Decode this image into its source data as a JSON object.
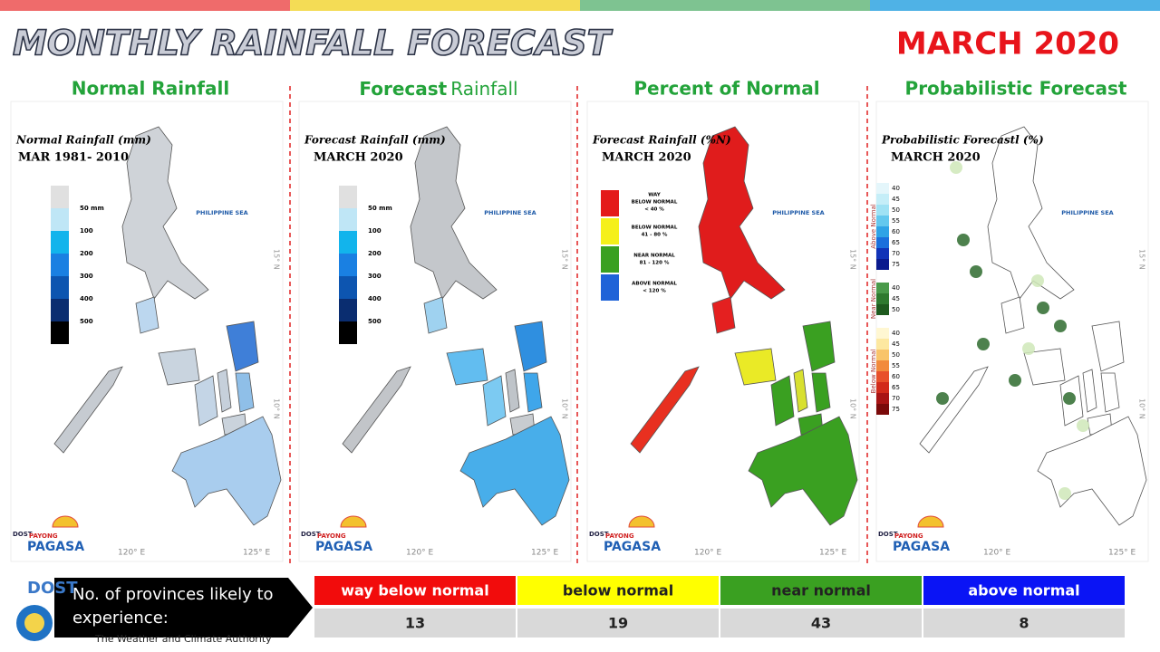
{
  "header": {
    "title": "MONTHLY RAINFALL FORECAST",
    "period": "MARCH 2020"
  },
  "panels": [
    {
      "heading": "Normal Rainfall",
      "map_title": "Normal Rainfall (mm)",
      "map_subtitle": "MAR 1981- 2010",
      "legend": [
        "50 mm",
        "100",
        "200",
        "300",
        "400",
        "500"
      ]
    },
    {
      "heading_bold": "Forecast",
      "heading": "Rainfall",
      "map_title": "Forecast Rainfall (mm)",
      "map_subtitle": "MARCH 2020",
      "legend": [
        "50 mm",
        "100",
        "200",
        "300",
        "400",
        "500"
      ]
    },
    {
      "heading": "Percent of Normal",
      "map_title": "Forecast Rainfall (%N)",
      "map_subtitle": "MARCH 2020",
      "legend": [
        [
          "WAY",
          "BELOW NORMAL",
          "< 40 %"
        ],
        [
          "BELOW NORMAL",
          "41 - 80 %"
        ],
        [
          "NEAR NORMAL",
          "81 - 120 %"
        ],
        [
          "ABOVE NORMAL",
          "< 120 %"
        ]
      ]
    },
    {
      "heading": "Probabilistic Forecast",
      "map_title": "Probabilistic Forecastl (%)",
      "map_subtitle": "MARCH 2020",
      "legend": [
        {
          "name": "Above Normal",
          "steps": [
            "40",
            "45",
            "50",
            "55",
            "60",
            "65",
            "70",
            "75"
          ]
        },
        {
          "name": "Near Normal",
          "steps": [
            "40",
            "45",
            "50"
          ]
        },
        {
          "name": "Below Normal",
          "steps": [
            "40",
            "45",
            "50",
            "55",
            "60",
            "65",
            "70",
            "75"
          ]
        }
      ]
    }
  ],
  "map_labels": {
    "sea": "PHILIPPINE SEA",
    "lon": [
      "120° E",
      "125° E"
    ],
    "lat": [
      "15° N",
      "10° N"
    ]
  },
  "logo": {
    "agency": "DOST",
    "program": "PAYONG",
    "name": "PAGASA"
  },
  "table": {
    "label": "No. of provinces likely to experience:",
    "header": [
      "way below normal",
      "below normal",
      "near normal",
      "above normal"
    ],
    "rows": [
      [
        "13",
        "19",
        "43",
        "8"
      ]
    ]
  },
  "footer": {
    "agency": "DOST",
    "tagline": "The Weather and Climate Authority"
  }
}
